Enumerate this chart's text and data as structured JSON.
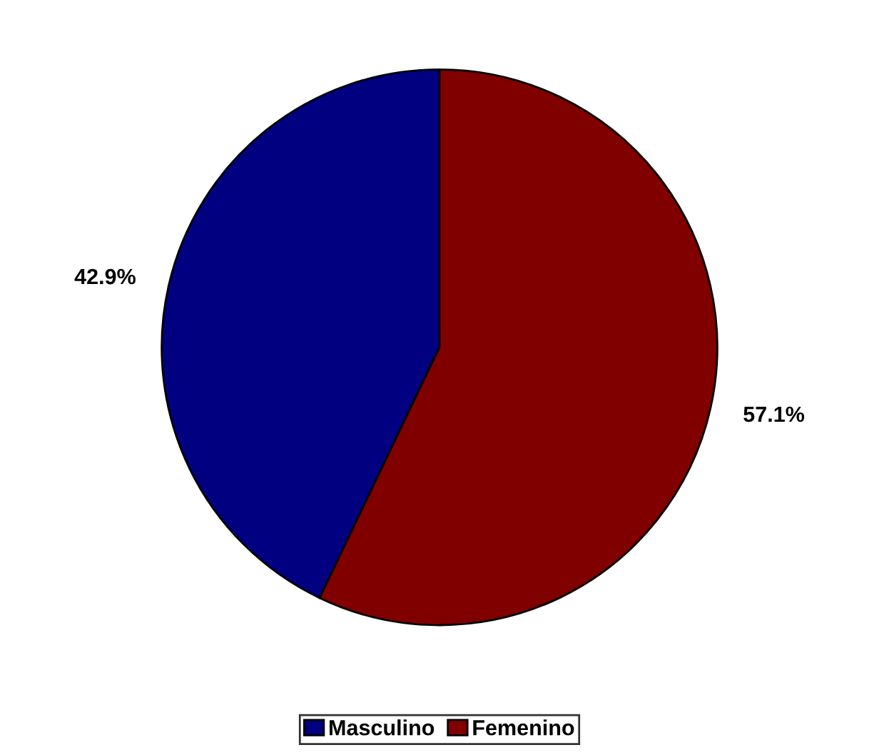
{
  "chart_data": {
    "type": "pie",
    "categories": [
      "Masculino",
      "Femenino"
    ],
    "values": [
      42.9,
      57.1
    ],
    "colors": [
      "#000080",
      "#800000"
    ],
    "value_labels": [
      "42.9%",
      "57.1%"
    ],
    "legend": "bottom"
  }
}
